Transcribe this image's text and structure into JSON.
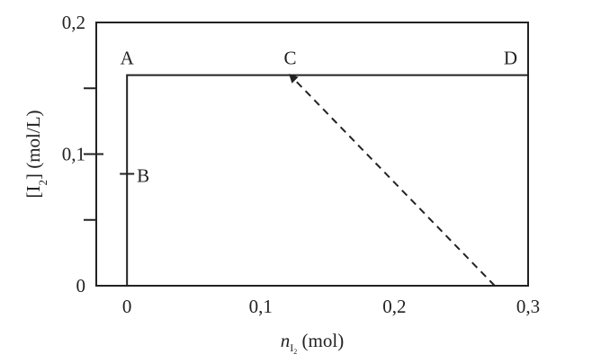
{
  "chart_data": {
    "type": "line",
    "ylabel": [
      "[I",
      "2",
      "] (mol/L)"
    ],
    "xlabel": [
      "n",
      "I",
      "2",
      " (mol)"
    ],
    "xlim": [
      -0.023,
      0.3
    ],
    "ylim": [
      0,
      0.2
    ],
    "xticks": [
      0,
      {
        "value": 0.1,
        "label": "0,1"
      },
      {
        "value": 0.2,
        "label": "0,2"
      },
      {
        "value": 0.3,
        "label": "0,3"
      }
    ],
    "yticks": [
      0,
      {
        "value": 0.1,
        "label": "0,1"
      },
      {
        "value": 0.2,
        "label": "0,2"
      }
    ],
    "yminorticks": [
      0.05,
      0.15
    ],
    "lines": [
      {
        "x": [
          0,
          0,
          0.3
        ],
        "y": [
          0,
          0.16,
          0.16
        ],
        "style": "solid",
        "color": "#222222"
      },
      {
        "x": [
          0.275,
          0.122
        ],
        "y": [
          0,
          0.16
        ],
        "style": "dashed",
        "arrow": true,
        "color": "#222222"
      }
    ],
    "points": [
      {
        "label": "A",
        "x": 0,
        "y": 0.16
      },
      {
        "label": "B",
        "x": 0,
        "y": 0.085,
        "marker": "tick"
      },
      {
        "label": "C",
        "x": 0.122,
        "y": 0.16
      },
      {
        "label": "D",
        "x": 0.3,
        "y": 0.16
      }
    ]
  }
}
